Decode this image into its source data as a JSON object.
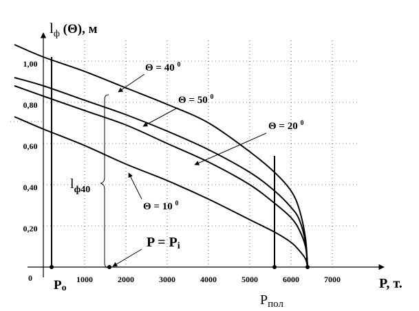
{
  "chart_data": {
    "type": "line",
    "ylabel": {
      "main": "l",
      "sub": "ф",
      "rest": " (Θ), м"
    },
    "xlabel": "P, т.",
    "origin_label": "0",
    "xlim": [
      0,
      8000
    ],
    "ylim": [
      0,
      1.05
    ],
    "x_ticks": [
      {
        "value": 1000,
        "label": "1000"
      },
      {
        "value": 2000,
        "label": "2000"
      },
      {
        "value": 3000,
        "label": "3000"
      },
      {
        "value": 4000,
        "label": "4000"
      },
      {
        "value": 5000,
        "label": "5000"
      },
      {
        "value": 6000,
        "label": "6000"
      },
      {
        "value": 7000,
        "label": "7000"
      }
    ],
    "y_ticks": [
      {
        "value": 0.2,
        "label": "0,20"
      },
      {
        "value": 0.4,
        "label": "0,40"
      },
      {
        "value": 0.6,
        "label": "0,60"
      },
      {
        "value": 0.8,
        "label": "0,80"
      },
      {
        "value": 1.0,
        "label": "1,00"
      }
    ],
    "series": [
      {
        "name": "Θ = 40⁰",
        "x": [
          -700,
          0,
          1000,
          2000,
          3000,
          4000,
          5000,
          5600,
          6000,
          6200,
          6350,
          6400
        ],
        "y": [
          1.08,
          1.02,
          0.95,
          0.87,
          0.79,
          0.7,
          0.56,
          0.46,
          0.37,
          0.28,
          0.14,
          0.0
        ]
      },
      {
        "name": "Θ = 50⁰",
        "x": [
          -700,
          0,
          1000,
          2000,
          3000,
          4000,
          5000,
          5600,
          6000,
          6200,
          6350,
          6400
        ],
        "y": [
          0.92,
          0.88,
          0.81,
          0.74,
          0.66,
          0.57,
          0.46,
          0.37,
          0.29,
          0.23,
          0.12,
          0.0
        ]
      },
      {
        "name": "Θ = 20⁰",
        "x": [
          -700,
          0,
          1000,
          2000,
          3000,
          4000,
          5000,
          5600,
          6000,
          6200,
          6350,
          6400
        ],
        "y": [
          0.88,
          0.83,
          0.76,
          0.69,
          0.6,
          0.51,
          0.4,
          0.31,
          0.24,
          0.18,
          0.1,
          0.0
        ]
      },
      {
        "name": "Θ = 10⁰",
        "x": [
          -700,
          0,
          1000,
          2000,
          3000,
          4000,
          5000,
          5600,
          6000,
          6200,
          6350,
          6400
        ],
        "y": [
          0.73,
          0.67,
          0.59,
          0.5,
          0.42,
          0.33,
          0.23,
          0.17,
          0.12,
          0.08,
          0.04,
          0.0
        ]
      }
    ],
    "vertical_lines": [
      {
        "name": "P0",
        "x": 200,
        "y_top": 1.0
      },
      {
        "name": "Pпол",
        "x": 5600,
        "y_top": 0.52
      }
    ],
    "markers": [
      {
        "name": "P0",
        "x": 200,
        "y": 0
      },
      {
        "name": "Pi",
        "x": 1600,
        "y": 0
      },
      {
        "name": "Pпол",
        "x": 5600,
        "y": 0
      },
      {
        "name": "end",
        "x": 6400,
        "y": 0
      }
    ],
    "annotations": {
      "theta40": {
        "prefix": "Θ = 40 ",
        "sup": "0"
      },
      "theta50": {
        "prefix": "Θ = 50 ",
        "sup": "0"
      },
      "theta20": {
        "prefix": "Θ = 20 ",
        "sup": "0"
      },
      "theta10": {
        "prefix": "Θ = 10 ",
        "sup": "0"
      },
      "p0": {
        "main": "P",
        "sub": "o"
      },
      "ppol": {
        "main": "P",
        "sub": "пол"
      },
      "pi": {
        "main": "P = P",
        "sub": "i"
      },
      "lphi40": {
        "main": "l",
        "sub": "ф40"
      }
    }
  }
}
